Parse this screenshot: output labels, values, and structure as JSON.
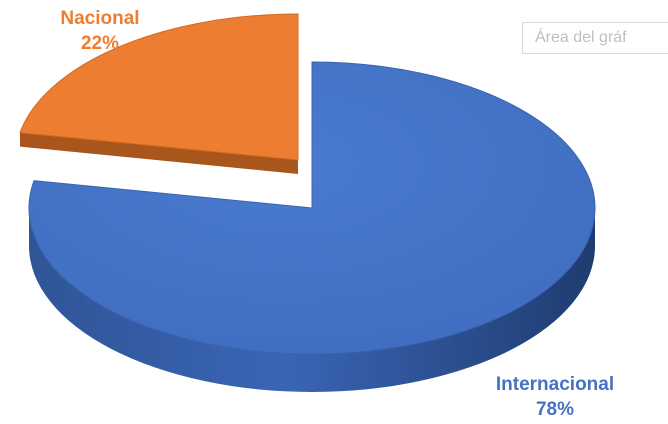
{
  "chart_area_label": "Área del gráf",
  "colors": {
    "nacional_top": "#ED7D31",
    "nacional_side": "#A8561C",
    "internacional_top": "#4472C4",
    "internacional_side": "#2A4A85"
  },
  "chart_data": {
    "type": "pie",
    "style": "3d-exploded",
    "categories": [
      "Nacional",
      "Internacional"
    ],
    "values": [
      22,
      78
    ],
    "labels": [
      {
        "category": "Nacional",
        "percent": "22%"
      },
      {
        "category": "Internacional",
        "percent": "78%"
      }
    ]
  }
}
